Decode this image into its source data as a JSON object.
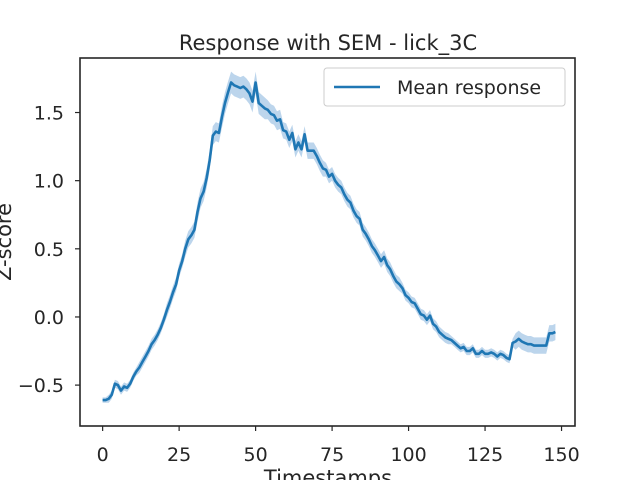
{
  "chart_data": {
    "type": "line",
    "title": "Response with SEM - lick_3C",
    "xlabel": "Timestamps",
    "ylabel": "Z-score",
    "xlim": [
      -7.4,
      154.4
    ],
    "ylim": [
      -0.8,
      1.9
    ],
    "xticks": [
      0,
      25,
      50,
      75,
      100,
      125,
      150
    ],
    "xtick_labels": [
      "0",
      "25",
      "50",
      "75",
      "100",
      "125",
      "150"
    ],
    "yticks": [
      -0.5,
      0.0,
      0.5,
      1.0,
      1.5
    ],
    "ytick_labels": [
      "−0.5",
      "0.0",
      "0.5",
      "1.0",
      "1.5"
    ],
    "grid": false,
    "legend_position": "upper-right",
    "colors": {
      "line": "#1f77b4",
      "band": "#8fb9e0",
      "axes": "#262626"
    },
    "series": [
      {
        "name": "Mean response",
        "x": [
          0,
          1,
          2,
          3,
          4,
          5,
          6,
          7,
          8,
          9,
          10,
          11,
          12,
          13,
          14,
          15,
          16,
          17,
          18,
          19,
          20,
          21,
          22,
          23,
          24,
          25,
          26,
          27,
          28,
          29,
          30,
          31,
          32,
          33,
          34,
          35,
          36,
          37,
          38,
          39,
          40,
          41,
          42,
          43,
          44,
          45,
          46,
          47,
          48,
          49,
          50,
          51,
          52,
          53,
          54,
          55,
          56,
          57,
          58,
          59,
          60,
          61,
          62,
          63,
          64,
          65,
          66,
          67,
          68,
          69,
          70,
          71,
          72,
          73,
          74,
          75,
          76,
          77,
          78,
          79,
          80,
          81,
          82,
          83,
          84,
          85,
          86,
          87,
          88,
          89,
          90,
          91,
          92,
          93,
          94,
          95,
          96,
          97,
          98,
          99,
          100,
          101,
          102,
          103,
          104,
          105,
          106,
          107,
          108,
          109,
          110,
          111,
          112,
          113,
          114,
          115,
          116,
          117,
          118,
          119,
          120,
          121,
          122,
          123,
          124,
          125,
          126,
          127,
          128,
          129,
          130,
          131,
          132,
          133,
          134,
          135,
          136,
          137,
          138,
          139,
          140,
          141,
          142,
          143,
          144,
          145,
          146,
          147,
          148
        ],
        "y": [
          -0.61,
          -0.61,
          -0.6,
          -0.57,
          -0.49,
          -0.5,
          -0.54,
          -0.51,
          -0.52,
          -0.49,
          -0.44,
          -0.4,
          -0.37,
          -0.33,
          -0.29,
          -0.25,
          -0.2,
          -0.17,
          -0.13,
          -0.08,
          -0.02,
          0.05,
          0.11,
          0.18,
          0.24,
          0.34,
          0.41,
          0.5,
          0.57,
          0.6,
          0.64,
          0.77,
          0.87,
          0.92,
          1.02,
          1.15,
          1.33,
          1.36,
          1.35,
          1.47,
          1.57,
          1.65,
          1.72,
          1.7,
          1.69,
          1.68,
          1.69,
          1.67,
          1.64,
          1.58,
          1.72,
          1.57,
          1.55,
          1.53,
          1.52,
          1.49,
          1.48,
          1.44,
          1.45,
          1.37,
          1.36,
          1.3,
          1.35,
          1.23,
          1.28,
          1.23,
          1.34,
          1.22,
          1.22,
          1.22,
          1.18,
          1.13,
          1.09,
          1.08,
          1.03,
          1.05,
          1.0,
          0.97,
          0.95,
          0.9,
          0.86,
          0.84,
          0.78,
          0.74,
          0.72,
          0.64,
          0.61,
          0.57,
          0.52,
          0.49,
          0.45,
          0.41,
          0.44,
          0.38,
          0.35,
          0.3,
          0.26,
          0.24,
          0.21,
          0.16,
          0.14,
          0.11,
          0.1,
          0.06,
          0.02,
          0.01,
          -0.02,
          0.01,
          -0.05,
          -0.07,
          -0.11,
          -0.13,
          -0.15,
          -0.16,
          -0.17,
          -0.19,
          -0.21,
          -0.23,
          -0.22,
          -0.25,
          -0.25,
          -0.23,
          -0.27,
          -0.27,
          -0.25,
          -0.27,
          -0.27,
          -0.26,
          -0.27,
          -0.29,
          -0.27,
          -0.28,
          -0.3,
          -0.31,
          -0.19,
          -0.18,
          -0.16,
          -0.18,
          -0.19,
          -0.2,
          -0.2,
          -0.21,
          -0.21,
          -0.21,
          -0.21,
          -0.21,
          -0.12,
          -0.12,
          -0.11
        ],
        "sem_band": [
          0.02,
          0.02,
          0.03,
          0.03,
          0.03,
          0.03,
          0.03,
          0.03,
          0.03,
          0.03,
          0.03,
          0.03,
          0.04,
          0.04,
          0.04,
          0.04,
          0.04,
          0.04,
          0.04,
          0.04,
          0.04,
          0.05,
          0.05,
          0.05,
          0.05,
          0.05,
          0.05,
          0.06,
          0.06,
          0.06,
          0.06,
          0.07,
          0.07,
          0.07,
          0.07,
          0.07,
          0.07,
          0.07,
          0.07,
          0.08,
          0.08,
          0.08,
          0.08,
          0.08,
          0.08,
          0.08,
          0.08,
          0.08,
          0.08,
          0.08,
          0.08,
          0.08,
          0.08,
          0.08,
          0.07,
          0.07,
          0.07,
          0.07,
          0.07,
          0.06,
          0.06,
          0.06,
          0.06,
          0.06,
          0.06,
          0.06,
          0.06,
          0.06,
          0.06,
          0.06,
          0.06,
          0.06,
          0.06,
          0.05,
          0.05,
          0.05,
          0.05,
          0.05,
          0.05,
          0.05,
          0.05,
          0.05,
          0.05,
          0.05,
          0.05,
          0.05,
          0.05,
          0.05,
          0.05,
          0.05,
          0.05,
          0.05,
          0.05,
          0.05,
          0.05,
          0.05,
          0.05,
          0.05,
          0.04,
          0.04,
          0.04,
          0.04,
          0.04,
          0.04,
          0.04,
          0.04,
          0.04,
          0.04,
          0.04,
          0.04,
          0.04,
          0.04,
          0.04,
          0.04,
          0.03,
          0.03,
          0.03,
          0.03,
          0.03,
          0.03,
          0.03,
          0.03,
          0.03,
          0.03,
          0.03,
          0.03,
          0.03,
          0.03,
          0.03,
          0.03,
          0.03,
          0.03,
          0.03,
          0.03,
          0.03,
          0.06,
          0.06,
          0.06,
          0.06,
          0.06,
          0.06,
          0.06,
          0.06,
          0.06,
          0.06,
          0.06,
          0.06,
          0.06,
          0.06,
          0.06
        ]
      }
    ]
  }
}
